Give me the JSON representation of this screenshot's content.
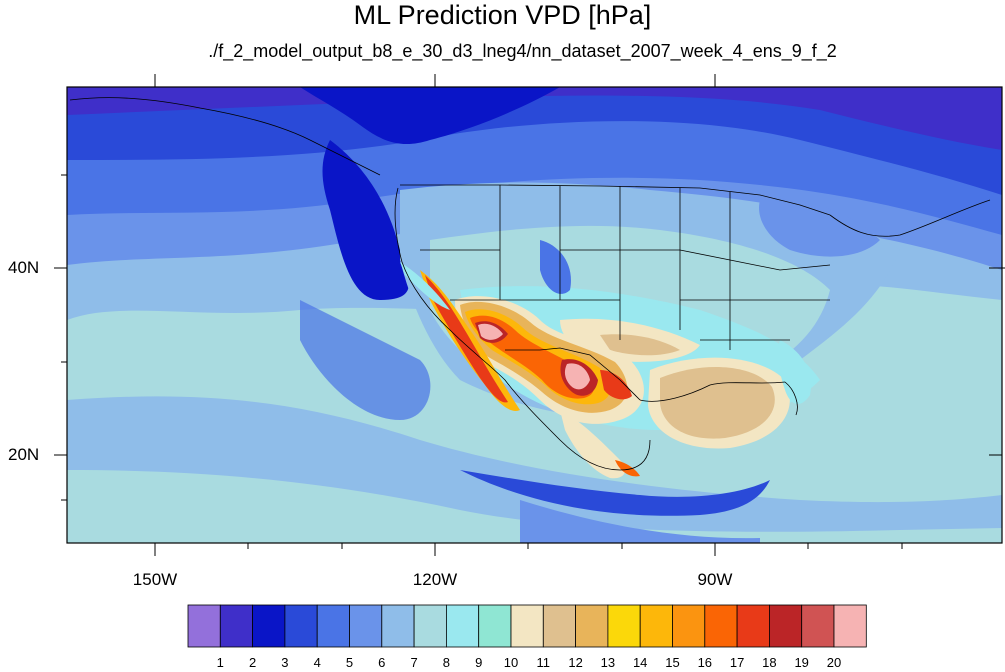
{
  "title": "ML Prediction VPD [hPa]",
  "subtitle": "./f_2_model_output_b8_e_30_d3_lneg4/nn_dataset_2007_week_4_ens_9_f_2",
  "map": {
    "lon_labels": [
      "150W",
      "120W",
      "90W"
    ],
    "lat_labels": [
      "40N",
      "20N"
    ]
  },
  "colorbar": {
    "labels": [
      "1",
      "2",
      "3",
      "4",
      "5",
      "6",
      "7",
      "8",
      "9",
      "10",
      "11",
      "12",
      "13",
      "14",
      "15",
      "16",
      "17",
      "18",
      "19",
      "20"
    ],
    "colors": [
      "#9370db",
      "#3f2fc9",
      "#0a15c7",
      "#2a4ad8",
      "#4a74e6",
      "#6a93ea",
      "#8fbde9",
      "#a9dbe0",
      "#9ae8ef",
      "#8fe6d3",
      "#f3e6c3",
      "#dfc08f",
      "#e8b45a",
      "#fbd80a",
      "#fdb70a",
      "#fb9410",
      "#fa6505",
      "#e83a18",
      "#bb2527",
      "#d05353",
      "#f6b3b3"
    ]
  }
}
